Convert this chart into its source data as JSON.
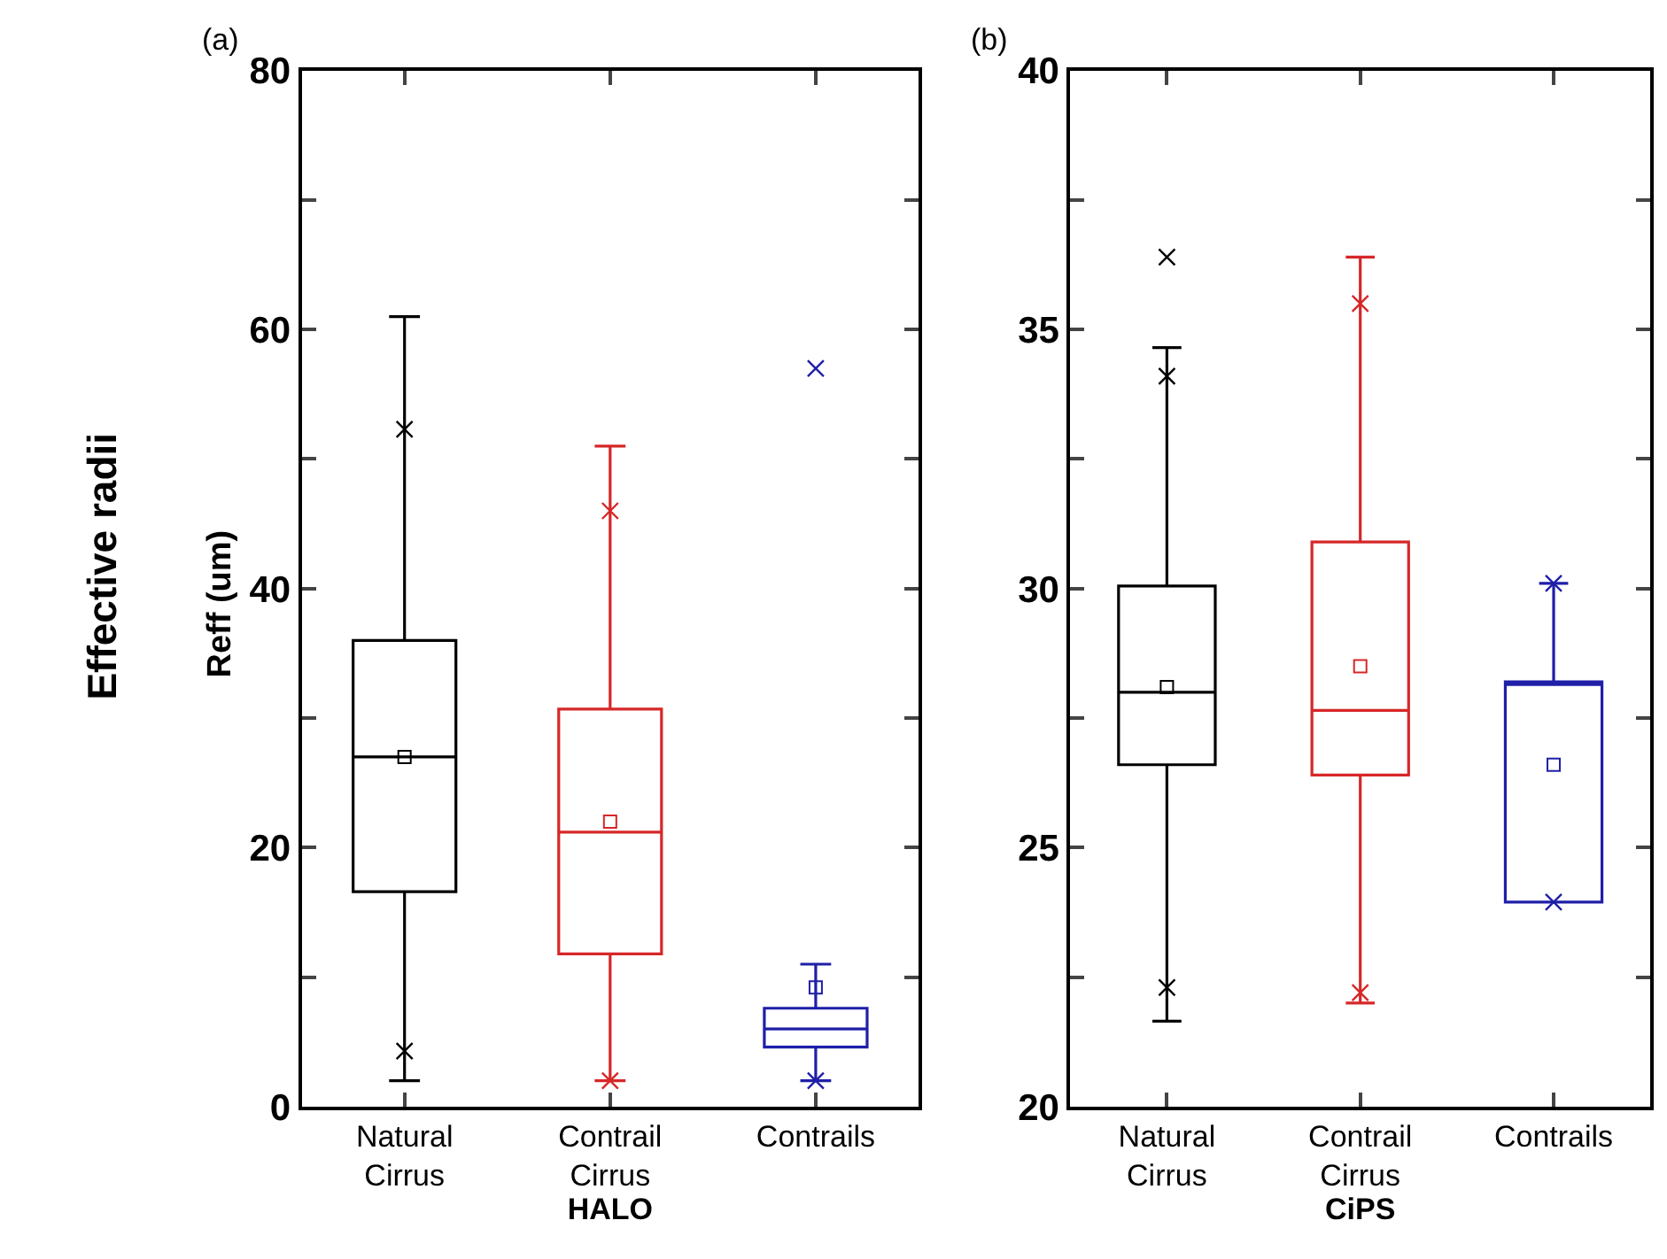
{
  "chart_data": [
    {
      "type": "box",
      "title": "(a)",
      "xlabel": "HALO",
      "ylabel": "Reff (um)",
      "annotations": [
        "Effective radii"
      ],
      "categories": [
        "Natural Cirrus",
        "Contrail Cirrus",
        "Contrails"
      ],
      "colors": [
        "#000000",
        "#d62728",
        "#1f1fa8"
      ],
      "boxes": [
        {
          "low": 2,
          "q1": 16.6,
          "median": 27,
          "q3": 36,
          "high": 61,
          "mean": 27,
          "outliers": [
            52.3,
            4.3
          ]
        },
        {
          "low": 2,
          "q1": 11.8,
          "median": 21.2,
          "q3": 30.7,
          "high": 51,
          "mean": 22,
          "outliers": [
            46,
            2
          ]
        },
        {
          "low": 2,
          "q1": 4.6,
          "median": 6,
          "q3": 7.6,
          "high": 11,
          "mean": 9.2,
          "outliers": [
            57,
            2
          ]
        }
      ],
      "ylim": [
        0,
        80
      ],
      "yticks": [
        0,
        {
          "value": 10,
          "label": null
        },
        20,
        {
          "value": 30,
          "label": null
        },
        40,
        {
          "value": 50,
          "label": null
        },
        60,
        {
          "value": 70,
          "label": null
        },
        80
      ]
    },
    {
      "type": "box",
      "title": "(b)",
      "xlabel": "CiPS",
      "categories": [
        "Natural Cirrus",
        "Contrail Cirrus",
        "Contrails"
      ],
      "colors": [
        "#000000",
        "#d62728",
        "#1f1fa8"
      ],
      "boxes": [
        {
          "low": 21.65,
          "q1": 26.6,
          "median": 28,
          "q3": 30.05,
          "high": 34.65,
          "mean": 28.1,
          "outliers": [
            36.4,
            34.1,
            22.3
          ]
        },
        {
          "low": 22,
          "q1": 26.4,
          "median": 27.65,
          "q3": 30.9,
          "high": 36.4,
          "mean": 28.5,
          "outliers": [
            35.5,
            22.2
          ]
        },
        {
          "low": 23.95,
          "q1": 23.95,
          "median": 28.15,
          "q3": 28.2,
          "high": 30.1,
          "mean": 26.6,
          "outliers": [
            30.1,
            23.95
          ]
        }
      ],
      "ylim": [
        20,
        40
      ],
      "yticks": [
        20,
        {
          "value": 22.5,
          "label": null
        },
        25,
        {
          "value": 27.5,
          "label": null
        },
        30,
        {
          "value": 32.5,
          "label": null
        },
        35,
        {
          "value": 37.5,
          "label": null
        },
        40
      ]
    }
  ]
}
